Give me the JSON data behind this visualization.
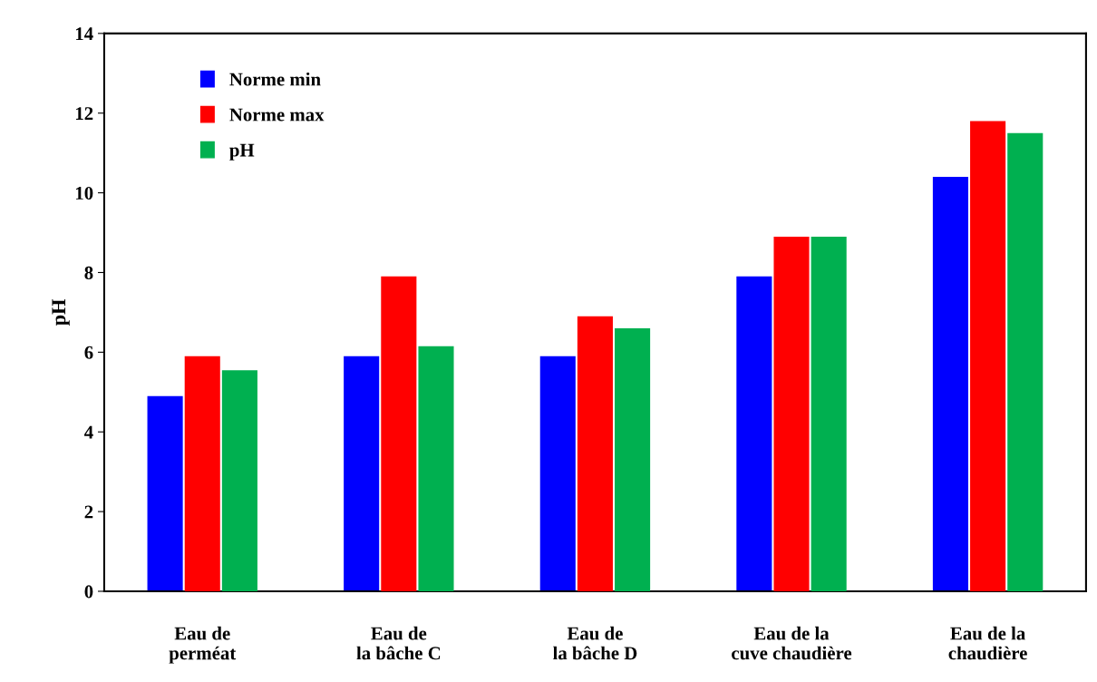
{
  "chart_data": {
    "type": "bar",
    "ylabel": "pH",
    "categories": [
      "Eau de\nperméat",
      "Eau de\nla bâche C",
      "Eau de\nla bâche D",
      "Eau de la\ncuve chaudière",
      "Eau de la\nchaudière"
    ],
    "series": [
      {
        "name": "Norme min",
        "color": "#0000ff",
        "values": [
          4.9,
          5.9,
          5.9,
          7.9,
          10.4
        ]
      },
      {
        "name": "Norme max",
        "color": "#ff0000",
        "values": [
          5.9,
          7.9,
          6.9,
          8.9,
          11.8
        ]
      },
      {
        "name": "pH",
        "color": "#00b050",
        "values": [
          5.55,
          6.15,
          6.6,
          8.9,
          11.5
        ]
      }
    ],
    "ylim": [
      0,
      14
    ],
    "yticks": [
      0,
      2,
      4,
      6,
      8,
      10,
      12,
      14
    ],
    "grid": false,
    "legend": "top left"
  }
}
